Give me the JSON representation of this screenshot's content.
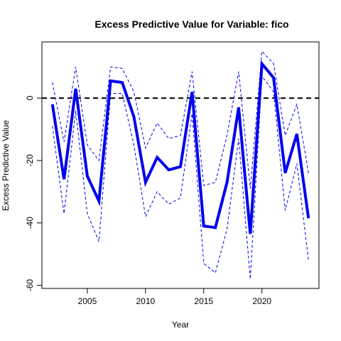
{
  "chart_data": {
    "type": "line",
    "title": "Excess Predictive Value for Variable: fico",
    "xlabel": "Year",
    "ylabel": "Excess Predictive Value",
    "xlim": [
      2001.1,
      2024.9
    ],
    "ylim": [
      -61,
      18
    ],
    "x_ticks": [
      2005,
      2010,
      2015,
      2020
    ],
    "y_ticks": [
      -60,
      -40,
      -20,
      0
    ],
    "reference_line": {
      "y": 0,
      "style": "dashed",
      "color": "#000000"
    },
    "grid": false,
    "legend": "none",
    "x": [
      2002,
      2003,
      2004,
      2005,
      2006,
      2007,
      2008,
      2009,
      2010,
      2011,
      2012,
      2013,
      2014,
      2015,
      2016,
      2017,
      2018,
      2019,
      2020,
      2021,
      2022,
      2023,
      2024
    ],
    "series": [
      {
        "role": "estimate",
        "color": "#0000ee",
        "values": [
          -2,
          -26,
          3,
          -25,
          -33,
          5.5,
          5,
          -6,
          -27,
          -19,
          -23,
          -22,
          2,
          -41,
          -41.5,
          -27,
          -3,
          -43.5,
          11,
          6.5,
          -24,
          -11.5,
          -38.5
        ]
      },
      {
        "role": "upper-bound",
        "color": "#0000ee",
        "style": "dashed",
        "values": [
          5,
          -14,
          10,
          -15,
          -20,
          10,
          9.5,
          2,
          -16,
          -8,
          -13,
          -12,
          8.5,
          -28,
          -27,
          -12,
          8.5,
          -29,
          15,
          11,
          -12,
          -2,
          -24
        ]
      },
      {
        "role": "lower-bound",
        "color": "#0000ee",
        "style": "dashed",
        "values": [
          -9,
          -37,
          -4,
          -37,
          -46,
          1.5,
          1.5,
          -15,
          -38,
          -30,
          -34,
          -32,
          -5,
          -53,
          -56,
          -42,
          -13,
          -58,
          7,
          2,
          -36,
          -21,
          -52
        ]
      }
    ]
  }
}
